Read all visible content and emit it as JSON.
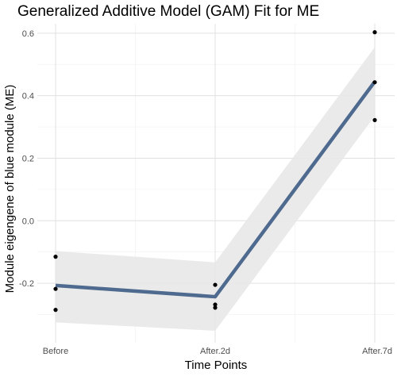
{
  "chart_data": {
    "type": "line",
    "title": "Generalized Additive Model (GAM) Fit for ME",
    "xlabel": "Time Points",
    "ylabel": "Module eigengene of blue module (ME)",
    "categories": [
      "Before",
      "After.2d",
      "After.7d"
    ],
    "ylim": [
      -0.39,
      0.63
    ],
    "yticks": [
      "-0.2",
      "0.0",
      "0.2",
      "0.4",
      "0.6"
    ],
    "grid": true,
    "legend": "none",
    "fit": {
      "values": [
        -0.207,
        -0.243,
        0.445
      ],
      "ci_lower": [
        -0.325,
        -0.352,
        0.335
      ],
      "ci_upper": [
        -0.097,
        -0.133,
        0.555
      ]
    },
    "points": [
      {
        "x": "Before",
        "y": -0.115
      },
      {
        "x": "Before",
        "y": -0.218
      },
      {
        "x": "Before",
        "y": -0.285
      },
      {
        "x": "After.2d",
        "y": -0.205
      },
      {
        "x": "After.2d",
        "y": -0.268
      },
      {
        "x": "After.2d",
        "y": -0.278
      },
      {
        "x": "After.7d",
        "y": 0.603
      },
      {
        "x": "After.7d",
        "y": 0.443
      },
      {
        "x": "After.7d",
        "y": 0.322
      }
    ],
    "colors": {
      "line": "#4f6a8f",
      "band": "#e8e8e8",
      "points": "#000000",
      "grid_major": "#e0e0e0",
      "grid_minor": "#f0f0f0"
    }
  }
}
